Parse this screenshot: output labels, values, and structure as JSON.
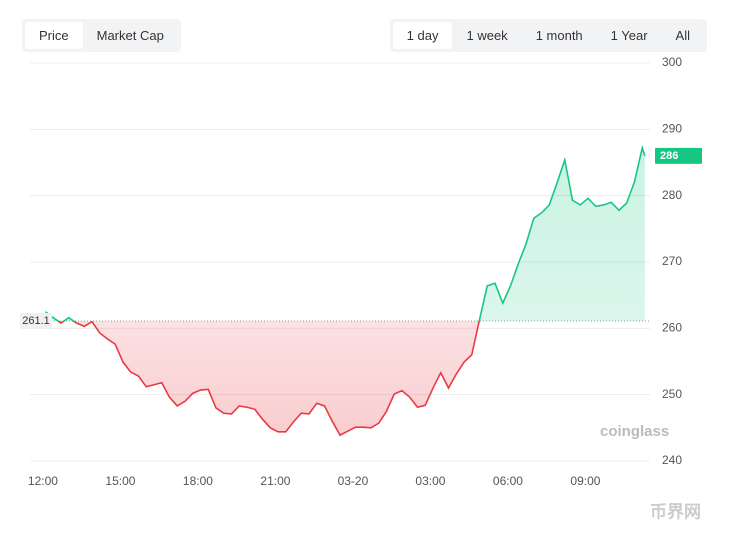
{
  "controls": {
    "left": [
      "Price",
      "Market Cap"
    ],
    "right": [
      "1 day",
      "1 week",
      "1 month",
      "1 Year",
      "All"
    ]
  },
  "chart_data": {
    "type": "line",
    "x": [
      0.1,
      0.4,
      0.7,
      1,
      1.3,
      1.6,
      1.9,
      2.2,
      2.5,
      2.8,
      3.1,
      3.4,
      3.7,
      4,
      4.3,
      4.6,
      4.9,
      5.2,
      5.5,
      5.8,
      6.1,
      6.4,
      6.7,
      7,
      7.3,
      7.6,
      7.9,
      8.2,
      8.5,
      8.8,
      9.1,
      9.4,
      9.7,
      10,
      10.3,
      10.6,
      10.9,
      11.2,
      11.5,
      11.8,
      12.1,
      12.4,
      12.7,
      13,
      13.3,
      13.6,
      13.9,
      14.2,
      14.5,
      14.8,
      15.1,
      15.4,
      15.7,
      16,
      16.3,
      16.6,
      16.9,
      17.2,
      17.5,
      17.8,
      18.1,
      18.4,
      18.7,
      19,
      19.3,
      19.6,
      19.9,
      20.2,
      20.5,
      20.8,
      21.1,
      21.4,
      21.7,
      22,
      22.3,
      22.6,
      22.9,
      23.2,
      23.3
    ],
    "values": [
      262.5,
      261.6,
      260.8,
      261.6,
      260.8,
      260.3,
      261.0,
      259.3,
      258.4,
      257.6,
      254.9,
      253.4,
      252.8,
      251.2,
      251.5,
      251.8,
      249.6,
      248.3,
      249.0,
      250.2,
      250.7,
      250.8,
      248.0,
      247.2,
      247.1,
      248.3,
      248.1,
      247.8,
      246.3,
      245.0,
      244.4,
      244.4,
      245.9,
      247.2,
      247.1,
      248.7,
      248.3,
      246.0,
      243.9,
      244.5,
      245.1,
      245.1,
      245.0,
      245.7,
      247.5,
      250.1,
      250.6,
      249.6,
      248.1,
      248.4,
      251.0,
      253.3,
      251.0,
      253.1,
      254.9,
      256.0,
      261.3,
      266.4,
      266.8,
      263.8,
      266.4,
      269.7,
      272.7,
      276.6,
      277.4,
      278.6,
      281.9,
      285.4,
      279.3,
      278.6,
      279.6,
      278.4,
      278.6,
      279.0,
      277.8,
      278.9,
      282.1,
      287.2,
      286
    ],
    "baseline": 261.1,
    "current_price": 286,
    "up_color": "#16c784",
    "down_color": "#ea3943",
    "xlim": [
      -0.5,
      23.5
    ],
    "ylim": [
      240,
      300
    ],
    "xticks": [
      {
        "value": 0,
        "label": "12:00"
      },
      {
        "value": 3,
        "label": "15:00"
      },
      {
        "value": 6,
        "label": "18:00"
      },
      {
        "value": 9,
        "label": "21:00"
      },
      {
        "value": 12,
        "label": "03-20"
      },
      {
        "value": 15,
        "label": "03:00"
      },
      {
        "value": 18,
        "label": "06:00"
      },
      {
        "value": 21,
        "label": "09:00"
      }
    ],
    "yticks": [
      240,
      250,
      260,
      270,
      280,
      290,
      300
    ],
    "grid": true,
    "watermark": "coinglass",
    "site_watermark": "币界网"
  }
}
